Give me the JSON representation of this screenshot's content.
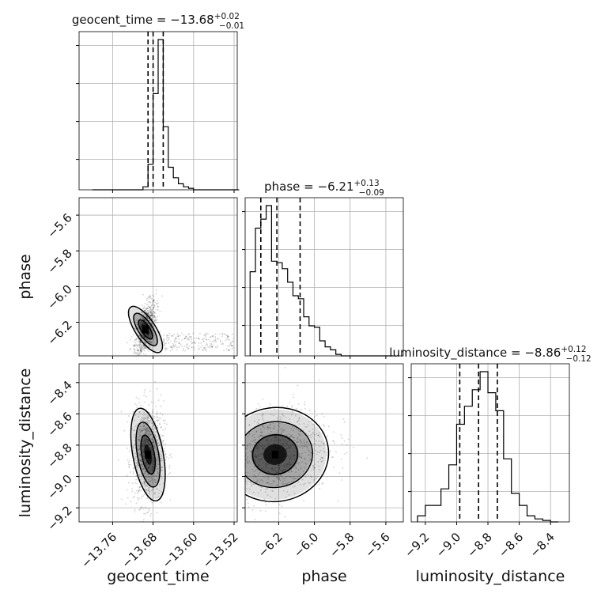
{
  "chart_data": {
    "type": "corner",
    "parameters": [
      "geocent_time",
      "phase",
      "luminosity_distance"
    ],
    "titles": [
      {
        "name": "geocent_time",
        "value": "−13.68",
        "plus": "+0.02",
        "minus": "−0.01"
      },
      {
        "name": "phase",
        "value": "−6.21",
        "plus": "+0.13",
        "minus": "−0.09"
      },
      {
        "name": "luminosity_distance",
        "value": "−8.86",
        "plus": "+0.12",
        "minus": "−0.12"
      }
    ],
    "ranges": {
      "geocent_time": [
        -13.82,
        -13.52
      ],
      "phase": [
        -6.37,
        -5.52
      ],
      "luminosity_distance": [
        -9.27,
        -8.3
      ]
    },
    "ticks": {
      "geocent_time": [
        -13.76,
        -13.68,
        -13.6,
        -13.52
      ],
      "phase": [
        -6.2,
        -6.0,
        -5.8,
        -5.6
      ],
      "luminosity_distance": [
        -9.2,
        -9.0,
        -8.8,
        -8.6,
        -8.4
      ]
    },
    "tick_labels": {
      "geocent_time": [
        "−13.76",
        "−13.68",
        "−13.60",
        "−13.52"
      ],
      "phase_x": [
        "−6.2",
        "−6.0",
        "−5.8",
        "−5.6"
      ],
      "phase_y": [
        "−5.6",
        "−5.8",
        "−6.0",
        "−6.2"
      ],
      "luminosity_distance_x": [
        "−9.2",
        "−9.0",
        "−8.8",
        "−8.6",
        "−8.4"
      ],
      "luminosity_distance_y": [
        "−8.4",
        "−8.6",
        "−8.8",
        "−9.0",
        "−9.2"
      ]
    },
    "quantiles": {
      "geocent_time": [
        -13.69,
        -13.68,
        -13.66
      ],
      "phase": [
        -6.3,
        -6.21,
        -6.08
      ],
      "luminosity_distance": [
        -8.98,
        -8.86,
        -8.74
      ]
    },
    "histograms": {
      "geocent_time": {
        "edges": [
          -13.8,
          -13.79,
          -13.78,
          -13.77,
          -13.76,
          -13.75,
          -13.74,
          -13.73,
          -13.72,
          -13.71,
          -13.7,
          -13.69,
          -13.68,
          -13.67,
          -13.66,
          -13.65,
          -13.64,
          -13.63,
          -13.62,
          -13.61,
          -13.6,
          -13.59,
          -13.58,
          -13.57,
          -13.56,
          -13.55,
          -13.54,
          -13.53,
          -13.52,
          -13.51
        ],
        "counts": [
          0,
          0,
          0,
          0,
          0,
          0,
          0,
          0,
          0,
          0,
          0.02,
          0.17,
          0.64,
          1.0,
          0.42,
          0.15,
          0.08,
          0.04,
          0.02,
          0.01,
          0,
          0,
          0,
          0,
          0,
          0,
          0,
          0,
          0
        ]
      },
      "phase": {
        "edges": [
          -6.36,
          -6.33,
          -6.3,
          -6.27,
          -6.24,
          -6.21,
          -6.18,
          -6.15,
          -6.12,
          -6.09,
          -6.06,
          -6.03,
          -6.0,
          -5.97,
          -5.94,
          -5.91,
          -5.88,
          -5.85,
          -5.82,
          -5.79,
          -5.76,
          -5.73,
          -5.7,
          -5.67,
          -5.64,
          -5.61,
          -5.58,
          -5.55
        ],
        "counts": [
          0.56,
          0.85,
          0.91,
          1.0,
          0.63,
          0.62,
          0.58,
          0.49,
          0.4,
          0.38,
          0.26,
          0.2,
          0.19,
          0.1,
          0.06,
          0.04,
          0.01,
          0,
          0,
          0,
          0,
          0,
          0,
          0,
          0,
          0,
          0
        ]
      },
      "luminosity_distance": {
        "edges": [
          -9.25,
          -9.2,
          -9.15,
          -9.1,
          -9.05,
          -9.0,
          -8.95,
          -8.9,
          -8.85,
          -8.8,
          -8.75,
          -8.7,
          -8.65,
          -8.6,
          -8.55,
          -8.5,
          -8.45,
          -8.4,
          -8.35
        ],
        "counts": [
          0.04,
          0.11,
          0.11,
          0.22,
          0.38,
          0.65,
          0.77,
          0.88,
          1.0,
          0.86,
          0.74,
          0.42,
          0.19,
          0.11,
          0.04,
          0.02,
          0.01,
          0
        ]
      }
    },
    "contour_levels": [
      0.39,
      0.86,
      0.99
    ],
    "samples_2d": {
      "phase_vs_geocent_time": {
        "mean": [
          -13.695,
          -6.24
        ],
        "sd": [
          0.008,
          0.06
        ],
        "rho": 0.55,
        "extra_tail": {
          "x": [
            -13.66,
            -13.52
          ],
          "y": [
            -6.36,
            -6.26
          ]
        }
      },
      "luminosity_distance_vs_geocent_time": {
        "mean": [
          -13.69,
          -8.86
        ],
        "sd": [
          0.012,
          0.12
        ],
        "rho": 0.1
      },
      "luminosity_distance_vs_phase": {
        "mean": [
          -6.22,
          -8.86
        ],
        "sd": [
          0.12,
          0.12
        ],
        "rho": 0.25
      }
    },
    "grid": true,
    "colors": {
      "hist": "#000000",
      "grid": "#b0b0b0",
      "density": "#000000",
      "contour": "#000000"
    }
  }
}
